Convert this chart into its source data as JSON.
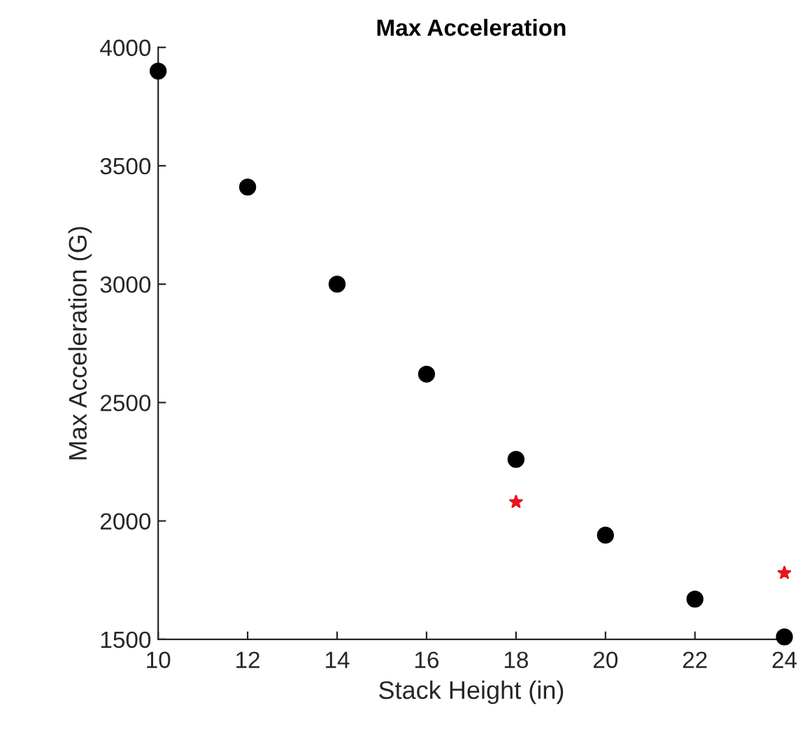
{
  "chart_data": {
    "type": "scatter",
    "title": "Max Acceleration",
    "xlabel": "Stack Height (in)",
    "ylabel": "Max Acceleration (G)",
    "xlim": [
      10,
      24
    ],
    "xticks": [
      10,
      12,
      14,
      16,
      18,
      20,
      22,
      24
    ],
    "ylim": [
      1500,
      4000
    ],
    "yticks": [
      1500,
      2000,
      2500,
      3000,
      3500,
      4000
    ],
    "grid": false,
    "series": [
      {
        "color": "#000000",
        "marker": "circle",
        "x": [
          10,
          12,
          14,
          16,
          18,
          20,
          22,
          24
        ],
        "values": [
          3900,
          3410,
          3000,
          2620,
          2260,
          1940,
          1670,
          1510
        ]
      },
      {
        "color": "#e8141c",
        "marker": "star",
        "x": [
          18,
          24
        ],
        "values": [
          2080,
          1780
        ]
      }
    ]
  }
}
